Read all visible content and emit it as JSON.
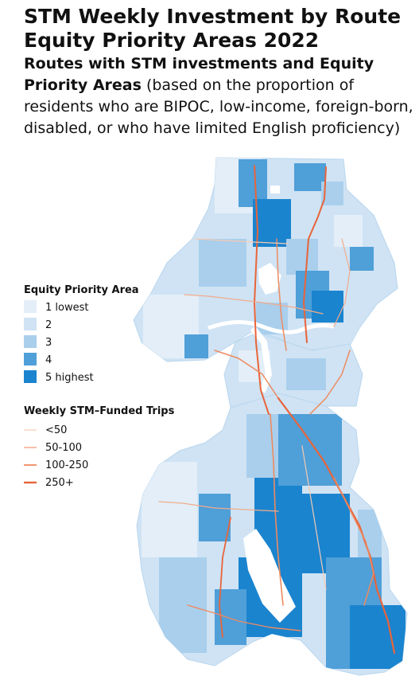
{
  "title": "STM Weekly Investment by Route Equity Priority Areas 2022",
  "subtitle": {
    "bold": "Routes with STM investments and Equity Priority Areas",
    "rest": " (based on the proportion of residents who are BIPOC, low-income, foreign-born, disabled, or who have limited English proficiency)"
  },
  "legend_equity": {
    "title": "Equity Priority Area",
    "items": [
      {
        "label": "1 lowest",
        "color": "#e3eef8"
      },
      {
        "label": "2",
        "color": "#cfe3f4"
      },
      {
        "label": "3",
        "color": "#a9cfec"
      },
      {
        "label": "4",
        "color": "#4f9fd8"
      },
      {
        "label": "5 highest",
        "color": "#1a84cf"
      }
    ]
  },
  "legend_trips": {
    "title": "Weekly STM–Funded Trips",
    "items": [
      {
        "label": "<50",
        "color": "#f6c9b3"
      },
      {
        "label": "50-100",
        "color": "#f2ab8b"
      },
      {
        "label": "100-250",
        "color": "#ee8a60"
      },
      {
        "label": "250+",
        "color": "#e8643a"
      }
    ]
  },
  "colors": {
    "water": "#ffffff",
    "route_low": "#f6c9b3",
    "route_high": "#e8643a"
  }
}
